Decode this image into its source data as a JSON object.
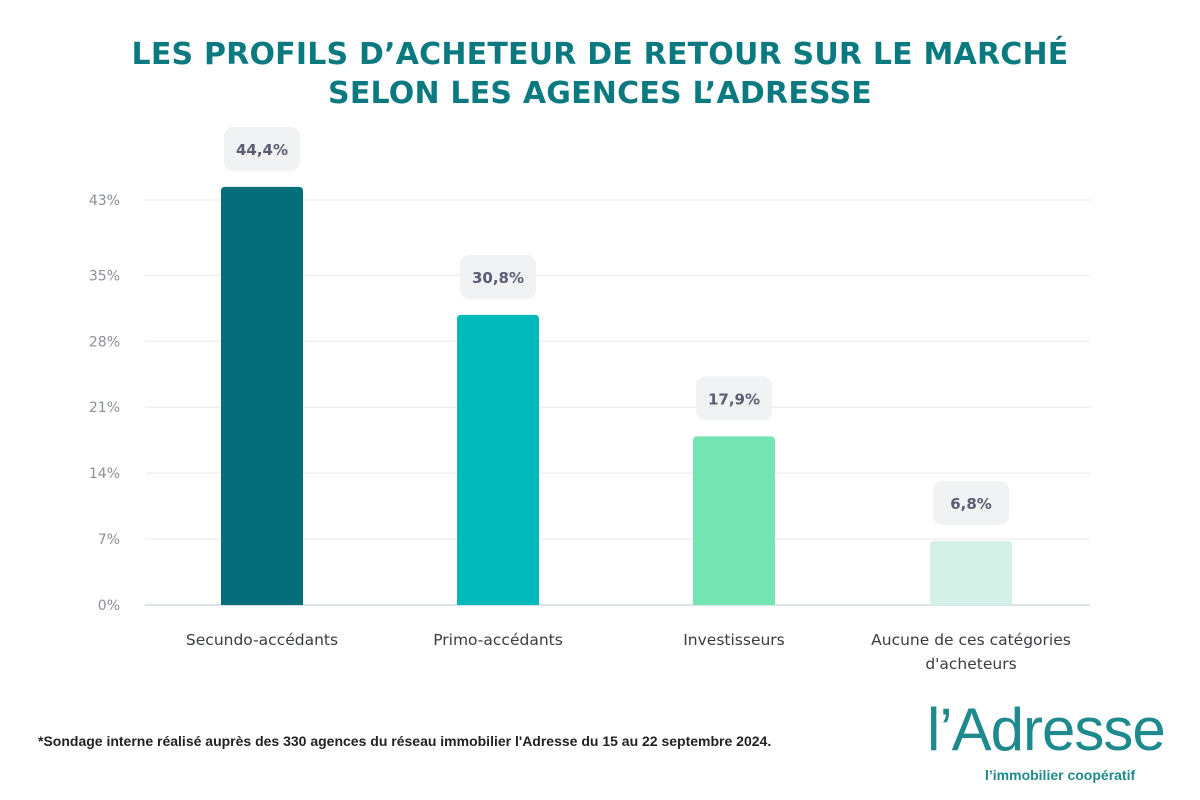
{
  "header": {
    "title_line1": "LES PROFILS D’ACHETEUR DE RETOUR SUR LE MARCHÉ",
    "title_line2": "SELON LES AGENCES L’ADRESSE"
  },
  "chart_data": {
    "type": "bar",
    "title": "",
    "xlabel": "",
    "ylabel": "",
    "categories": [
      "Secundo-accédants",
      "Primo-accédants",
      "Investisseurs",
      "Aucune de ces catégories d'acheteurs"
    ],
    "category_lines": [
      [
        "Secundo-accédants"
      ],
      [
        "Primo-accédants"
      ],
      [
        "Investisseurs"
      ],
      [
        "Aucune de ces catégories",
        "d'acheteurs"
      ]
    ],
    "values": [
      44.4,
      30.8,
      17.9,
      6.8
    ],
    "data_labels": [
      "44,4%",
      "30,8%",
      "17,9%",
      "6,8%"
    ],
    "colors": [
      "#046f7b",
      "#00b9b9",
      "#74e4b2",
      "#d3f1e6"
    ],
    "y_ticks": [
      0,
      7,
      14,
      21,
      28,
      35,
      43
    ],
    "y_tick_labels": [
      "0%",
      "7%",
      "14%",
      "21%",
      "28%",
      "35%",
      "43%"
    ],
    "ylim": [
      0,
      44.4
    ],
    "grid": true,
    "legend": "none"
  },
  "footer": {
    "footnote": "*Sondage interne réalisé auprès des 330 agences du réseau immobilier l'Adresse du 15 au 22 septembre 2024.",
    "logo_text": "l’Adresse",
    "logo_tagline": "l’immobilier coopératif"
  }
}
